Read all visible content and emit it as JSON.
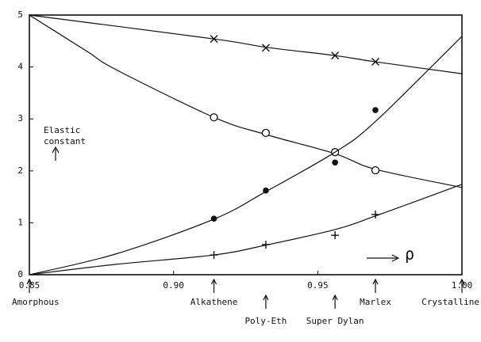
{
  "chart_data": {
    "type": "scatter",
    "ylabel": [
      "Elastic",
      "constant"
    ],
    "xlabel": "ρ",
    "xlim": [
      0.85,
      1.0
    ],
    "xticks": [
      0.85,
      {
        "value": 0.9,
        "label": "0.90"
      },
      0.95,
      {
        "value": 1.0,
        "label": "1.00"
      }
    ],
    "ylim": [
      0,
      5
    ],
    "yticks": [
      0,
      1,
      2,
      3,
      4,
      5
    ],
    "color": "#111111",
    "series": [
      {
        "marker": "x",
        "x": [
          0.914,
          0.932,
          0.956,
          0.97
        ],
        "values": [
          4.54,
          4.37,
          4.22,
          4.1
        ],
        "curve": {
          "x": [
            0.85,
            0.914,
            0.932,
            0.956,
            0.97,
            1.0
          ],
          "values": [
            5,
            4.54,
            4.38,
            4.22,
            4.1,
            3.87
          ]
        }
      },
      {
        "marker": "o",
        "x": [
          0.914,
          0.932,
          0.956,
          0.97
        ],
        "values": [
          3.03,
          2.73,
          2.36,
          2.01
        ],
        "curve": {
          "x": [
            0.85,
            0.87,
            0.88,
            0.914,
            0.932,
            0.956,
            0.97,
            1.0
          ],
          "values": [
            5,
            4.3,
            3.95,
            3.03,
            2.7,
            2.33,
            2.03,
            1.68
          ]
        }
      },
      {
        "marker": "dot",
        "x": [
          0.914,
          0.932,
          0.956,
          0.97
        ],
        "values": [
          1.08,
          1.62,
          2.16,
          3.17
        ],
        "curve": {
          "x": [
            0.85,
            0.88,
            0.914,
            0.932,
            0.956,
            0.97,
            1.0
          ],
          "values": [
            0,
            0.4,
            1.07,
            1.6,
            2.36,
            2.95,
            4.59
          ]
        }
      },
      {
        "marker": "plus",
        "x": [
          0.914,
          0.932,
          0.956,
          0.97
        ],
        "values": [
          0.38,
          0.58,
          0.76,
          1.16
        ],
        "curve": {
          "x": [
            0.85,
            0.88,
            0.914,
            0.932,
            0.956,
            0.97,
            1.0
          ],
          "values": [
            0,
            0.2,
            0.38,
            0.57,
            0.87,
            1.13,
            1.74
          ]
        }
      }
    ],
    "materials": [
      {
        "label": "Amorphous",
        "x": 0.85
      },
      {
        "label": "Alkathene",
        "x": 0.914
      },
      {
        "label": "Poly-Eth",
        "x": 0.932
      },
      {
        "label": "Super Dylan",
        "x": 0.956
      },
      {
        "label": "Marlex",
        "x": 0.97
      },
      {
        "label": "Crystalline",
        "x": 1.0
      }
    ]
  }
}
